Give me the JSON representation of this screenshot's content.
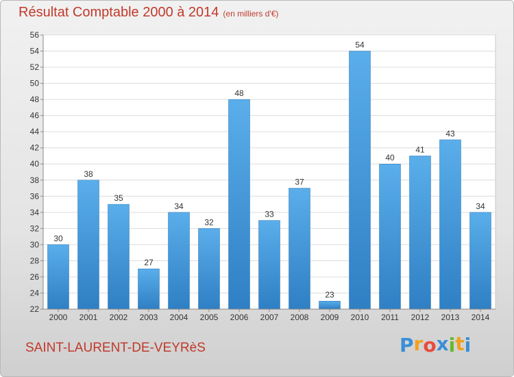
{
  "header": {
    "title": "Résultat Comptable 2000 à 2014",
    "unit": "(en milliers d'€)"
  },
  "footer": {
    "city": "SAINT-LAURENT-DE-VEYRèS",
    "logo_letters": [
      "P",
      "r",
      "o",
      "x",
      "i",
      "t",
      "i"
    ],
    "logo_colors": [
      "#3a8fd6",
      "#f0a020",
      "#e94b3c",
      "#3a8fd6",
      "#66b82e",
      "#f0a020",
      "#3a8fd6"
    ]
  },
  "chart_data": {
    "type": "bar",
    "categories": [
      "2000",
      "2001",
      "2002",
      "2003",
      "2004",
      "2005",
      "2006",
      "2007",
      "2008",
      "2009",
      "2010",
      "2011",
      "2012",
      "2013",
      "2014"
    ],
    "values": [
      30,
      38,
      35,
      27,
      34,
      32,
      48,
      33,
      37,
      23,
      54,
      40,
      41,
      43,
      34
    ],
    "title": "Résultat Comptable 2000 à 2014",
    "ylim": [
      22,
      56
    ],
    "yticks": [
      22,
      24,
      26,
      28,
      30,
      32,
      34,
      36,
      38,
      40,
      42,
      44,
      46,
      48,
      50,
      52,
      54,
      56
    ],
    "grid": true,
    "bar_color": "#4a9fe0",
    "bar_color_dark": "#2f7fc4"
  }
}
